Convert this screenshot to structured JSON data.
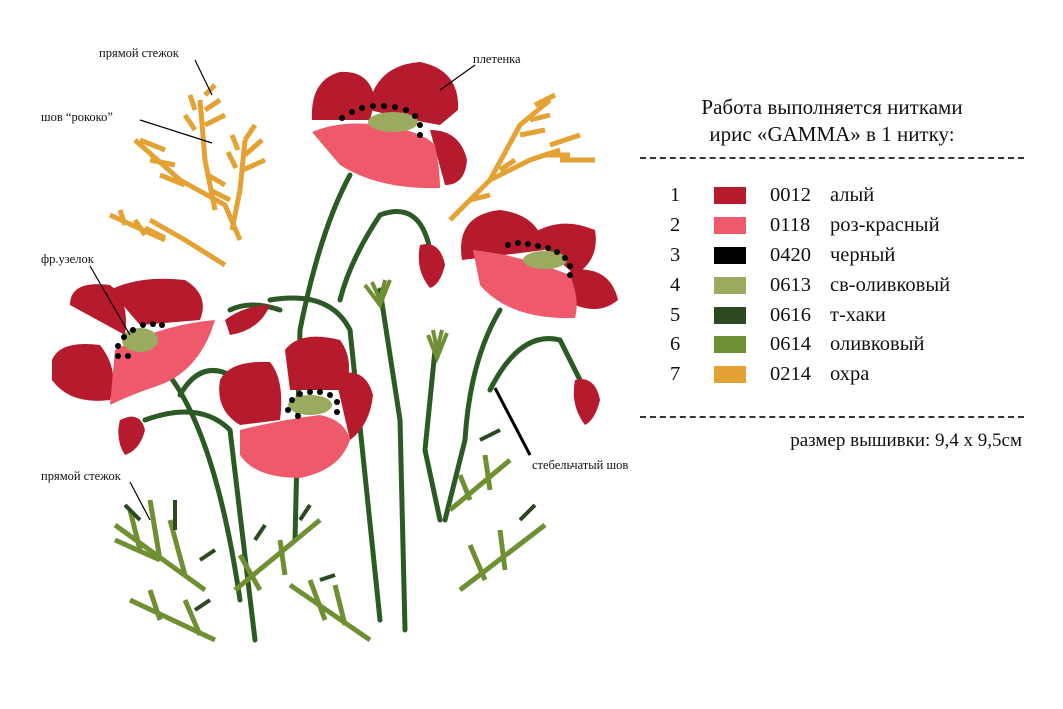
{
  "callouts": {
    "straight_stitch_top": "прямой стежок",
    "rococo_stitch": "шов “рококо”",
    "french_knot": "фр.узелок",
    "straight_stitch_bottom": "прямой стежок",
    "braid": "плетенка",
    "stem_stitch": "стебельчатый шов"
  },
  "legend": {
    "heading_line1": "Работа выполняется нитками",
    "heading_line2": "ирис «GAMMA» в 1 нитку:",
    "threads": [
      {
        "num": "1",
        "color": "#b51a2d",
        "code": "0012",
        "name": "алый"
      },
      {
        "num": "2",
        "color": "#ee5a6b",
        "code": "0118",
        "name": "роз-красный"
      },
      {
        "num": "3",
        "color": "#000000",
        "code": "0420",
        "name": "черный"
      },
      {
        "num": "4",
        "color": "#9aaa5e",
        "code": "0613",
        "name": "св-оливковый"
      },
      {
        "num": "5",
        "color": "#2b4a22",
        "code": "0616",
        "name": "т-хаки"
      },
      {
        "num": "6",
        "color": "#6f8f33",
        "code": "0614",
        "name": "оливковый"
      },
      {
        "num": "7",
        "color": "#e3a233",
        "code": "0214",
        "name": "охра"
      }
    ],
    "size_text": "размер вышивки: 9,4 х 9,5см"
  }
}
